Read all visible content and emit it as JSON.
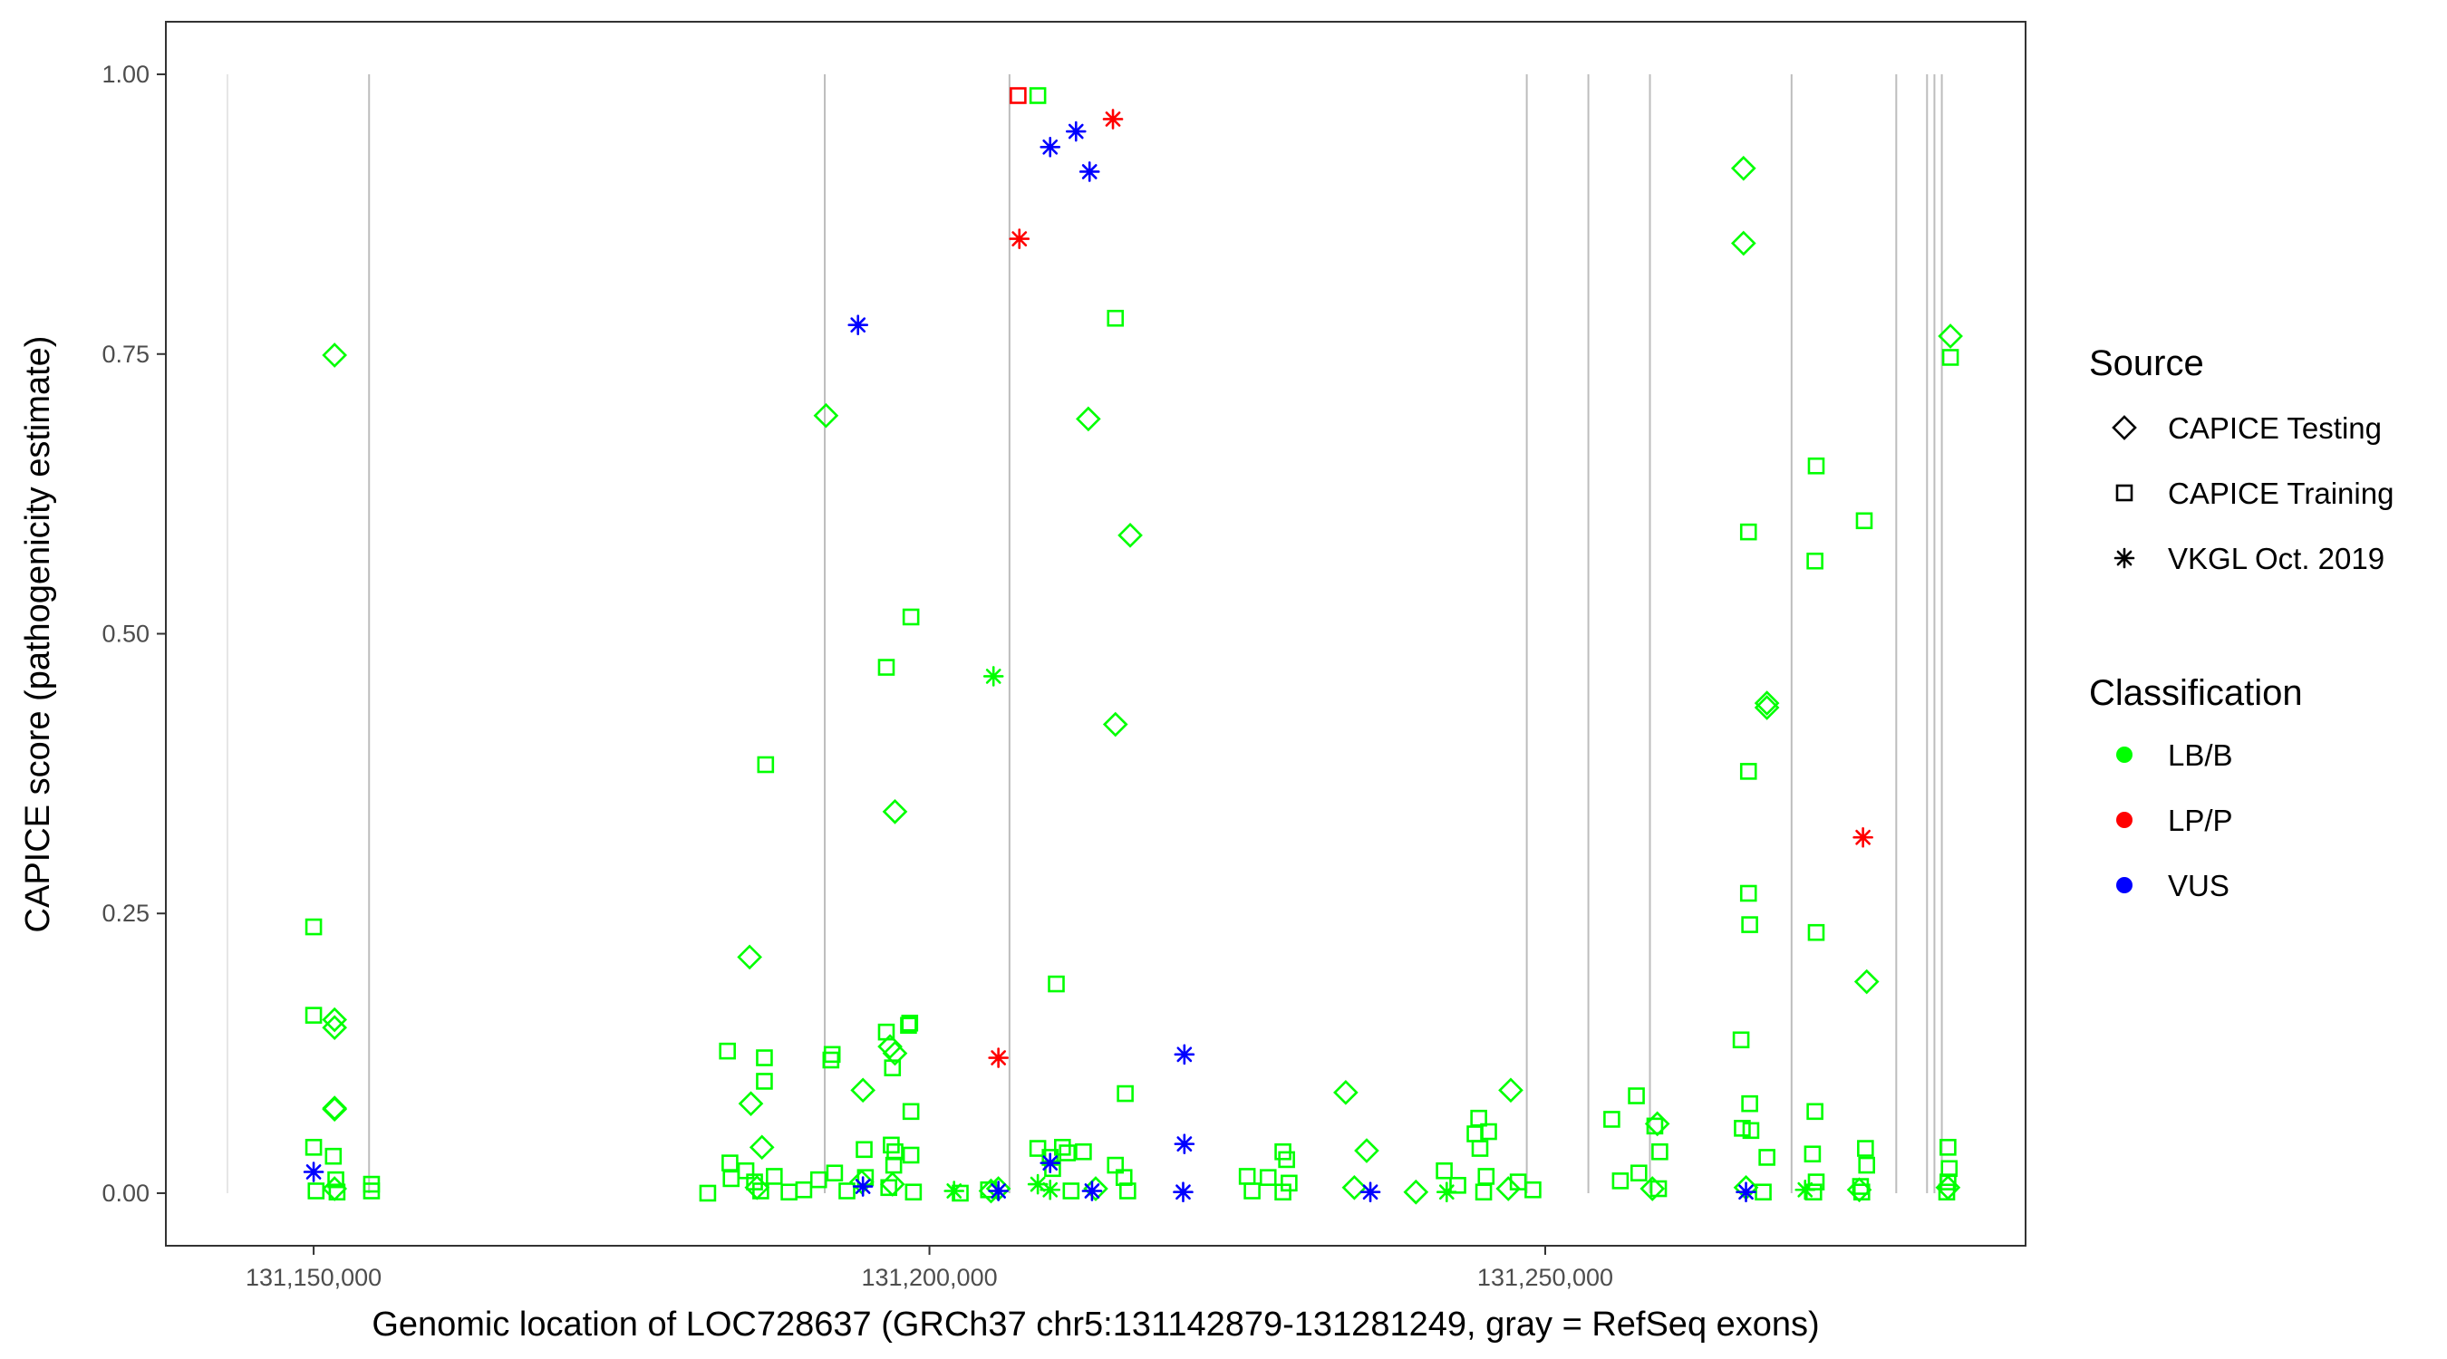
{
  "chart_data": {
    "type": "scatter",
    "title": "",
    "xlabel": "Genomic location of LOC728637 (GRCh37 chr5:131142879-131281249, gray = RefSeq exons)",
    "ylabel": "CAPICE score (pathogenicity estimate)",
    "xlim": [
      131138000,
      131289000
    ],
    "ylim": [
      -0.047,
      1.047
    ],
    "x_ticks": [
      131150000,
      131200000,
      131250000
    ],
    "x_tick_labels": [
      "131,150,000",
      "131,200,000",
      "131,250,000"
    ],
    "y_ticks": [
      0,
      0.25,
      0.5,
      0.75,
      1.0
    ],
    "y_tick_labels": [
      "0.00",
      "0.25",
      "0.50",
      "0.75",
      "1.00"
    ],
    "grid": false,
    "exon_lines": [
      {
        "x": 131143000,
        "color": "#e6e6e6"
      },
      {
        "x": 131154500,
        "color": "#bdbdbd"
      },
      {
        "x": 131191500,
        "color": "#bdbdbd"
      },
      {
        "x": 131206500,
        "color": "#bdbdbd"
      },
      {
        "x": 131248500,
        "color": "#bdbdbd"
      },
      {
        "x": 131253500,
        "color": "#bdbdbd"
      },
      {
        "x": 131258500,
        "color": "#bdbdbd"
      },
      {
        "x": 131270000,
        "color": "#bdbdbd"
      },
      {
        "x": 131278500,
        "color": "#bdbdbd"
      },
      {
        "x": 131281000,
        "color": "#bdbdbd"
      },
      {
        "x": 131281600,
        "color": "#bdbdbd"
      },
      {
        "x": 131282200,
        "color": "#bdbdbd"
      }
    ],
    "legend": {
      "placement": "right",
      "source_title": "Source",
      "source_items": [
        {
          "label": "CAPICE Testing",
          "shape": "diamond"
        },
        {
          "label": "CAPICE Training",
          "shape": "square"
        },
        {
          "label": "VKGL Oct. 2019",
          "shape": "asterisk"
        }
      ],
      "class_title": "Classification",
      "class_items": [
        {
          "label": "LB/B",
          "color": "#00ff00"
        },
        {
          "label": "LP/P",
          "color": "#ff0000"
        },
        {
          "label": "VUS",
          "color": "#0000ff"
        }
      ]
    },
    "series": [
      {
        "name": "CAPICE Testing",
        "shape": "diamond",
        "classification": "LB/B",
        "color": "#00ff00",
        "points": [
          [
            131151700,
            0.749
          ],
          [
            131151700,
            0.155
          ],
          [
            131151700,
            0.148
          ],
          [
            131151700,
            0.076
          ],
          [
            131151700,
            0.075
          ],
          [
            131151700,
            0.004
          ],
          [
            131185400,
            0.211
          ],
          [
            131185500,
            0.08
          ],
          [
            131186400,
            0.041
          ],
          [
            131186000,
            0.005
          ],
          [
            131191600,
            0.695
          ],
          [
            131194600,
            0.092
          ],
          [
            131194500,
            0.01
          ],
          [
            131197200,
            0.341
          ],
          [
            131196800,
            0.131
          ],
          [
            131197200,
            0.125
          ],
          [
            131197000,
            0.008
          ],
          [
            131205000,
            0.002
          ],
          [
            131205600,
            0.004
          ],
          [
            131212900,
            0.692
          ],
          [
            131215100,
            0.419
          ],
          [
            131216300,
            0.588
          ],
          [
            131213500,
            0.004
          ],
          [
            131233800,
            0.09
          ],
          [
            131235500,
            0.038
          ],
          [
            131234500,
            0.005
          ],
          [
            131239500,
            0.001
          ],
          [
            131247200,
            0.092
          ],
          [
            131247000,
            0.004
          ],
          [
            131259100,
            0.062
          ],
          [
            131258700,
            0.004
          ],
          [
            131266100,
            0.916
          ],
          [
            131266100,
            0.849
          ],
          [
            131268000,
            0.438
          ],
          [
            131268000,
            0.434
          ],
          [
            131266300,
            0.005
          ],
          [
            131276100,
            0.189
          ],
          [
            131275500,
            0.003
          ],
          [
            131282900,
            0.766
          ],
          [
            131282700,
            0.005
          ]
        ]
      },
      {
        "name": "CAPICE Training",
        "shape": "square",
        "classification": "LB/B",
        "color": "#00ff00",
        "points": [
          [
            131150000,
            0.238
          ],
          [
            131150000,
            0.159
          ],
          [
            131150000,
            0.041
          ],
          [
            131151600,
            0.033
          ],
          [
            131151800,
            0.012
          ],
          [
            131150200,
            0.002
          ],
          [
            131151900,
            0.001
          ],
          [
            131154700,
            0.008
          ],
          [
            131154700,
            0.002
          ],
          [
            131182000,
            0.0
          ],
          [
            131183600,
            0.127
          ],
          [
            131183800,
            0.027
          ],
          [
            131183900,
            0.013
          ],
          [
            131185100,
            0.02
          ],
          [
            131185800,
            0.01
          ],
          [
            131186300,
            0.002
          ],
          [
            131186700,
            0.383
          ],
          [
            131186600,
            0.121
          ],
          [
            131186600,
            0.1
          ],
          [
            131187400,
            0.015
          ],
          [
            131188600,
            0.001
          ],
          [
            131189800,
            0.003
          ],
          [
            131191000,
            0.012
          ],
          [
            131192100,
            0.124
          ],
          [
            131192000,
            0.119
          ],
          [
            131192300,
            0.018
          ],
          [
            131193300,
            0.002
          ],
          [
            131194700,
            0.039
          ],
          [
            131194800,
            0.014
          ],
          [
            131196500,
            0.47
          ],
          [
            131196500,
            0.144
          ],
          [
            131197000,
            0.112
          ],
          [
            131196900,
            0.043
          ],
          [
            131197200,
            0.037
          ],
          [
            131197100,
            0.025
          ],
          [
            131198500,
            0.515
          ],
          [
            131198400,
            0.152
          ],
          [
            131198300,
            0.15
          ],
          [
            131198500,
            0.073
          ],
          [
            131198500,
            0.034
          ],
          [
            131196700,
            0.005
          ],
          [
            131198700,
            0.001
          ],
          [
            131202500,
            0.0
          ],
          [
            131208800,
            0.981
          ],
          [
            131210800,
            0.041
          ],
          [
            131204800,
            0.003
          ],
          [
            131208800,
            0.04
          ],
          [
            131209800,
            0.032
          ],
          [
            131210300,
            0.187
          ],
          [
            131210000,
            0.022
          ],
          [
            131211200,
            0.036
          ],
          [
            131212500,
            0.037
          ],
          [
            131211500,
            0.002
          ],
          [
            131215100,
            0.782
          ],
          [
            131215100,
            0.025
          ],
          [
            131215900,
            0.089
          ],
          [
            131215800,
            0.014
          ],
          [
            131216100,
            0.002
          ],
          [
            131225800,
            0.015
          ],
          [
            131226200,
            0.002
          ],
          [
            131227500,
            0.014
          ],
          [
            131228700,
            0.037
          ],
          [
            131229000,
            0.03
          ],
          [
            131229200,
            0.009
          ],
          [
            131228700,
            0.001
          ],
          [
            131241800,
            0.02
          ],
          [
            131242900,
            0.007
          ],
          [
            131244300,
            0.053
          ],
          [
            131244600,
            0.067
          ],
          [
            131244700,
            0.04
          ],
          [
            131245200,
            0.015
          ],
          [
            131245400,
            0.055
          ],
          [
            131245000,
            0.001
          ],
          [
            131247800,
            0.01
          ],
          [
            131249000,
            0.003
          ],
          [
            131255400,
            0.066
          ],
          [
            131256100,
            0.011
          ],
          [
            131257400,
            0.087
          ],
          [
            131257600,
            0.018
          ],
          [
            131258900,
            0.06
          ],
          [
            131259300,
            0.037
          ],
          [
            131259200,
            0.004
          ],
          [
            131265900,
            0.137
          ],
          [
            131266000,
            0.058
          ],
          [
            131266500,
            0.591
          ],
          [
            131266500,
            0.377
          ],
          [
            131266500,
            0.268
          ],
          [
            131266600,
            0.24
          ],
          [
            131266600,
            0.08
          ],
          [
            131266700,
            0.056
          ],
          [
            131268000,
            0.032
          ],
          [
            131267700,
            0.001
          ],
          [
            131272000,
            0.65
          ],
          [
            131271900,
            0.565
          ],
          [
            131272000,
            0.233
          ],
          [
            131271900,
            0.073
          ],
          [
            131271700,
            0.035
          ],
          [
            131272000,
            0.01
          ],
          [
            131271800,
            0.001
          ],
          [
            131275900,
            0.601
          ],
          [
            131276000,
            0.04
          ],
          [
            131276100,
            0.025
          ],
          [
            131275600,
            0.006
          ],
          [
            131275700,
            0.001
          ],
          [
            131282900,
            0.747
          ],
          [
            131282700,
            0.041
          ],
          [
            131282800,
            0.022
          ],
          [
            131282700,
            0.01
          ],
          [
            131282600,
            0.001
          ]
        ]
      },
      {
        "name": "CAPICE Training",
        "shape": "square",
        "classification": "LP/P",
        "color": "#ff0000",
        "points": [
          [
            131207200,
            0.981
          ]
        ]
      },
      {
        "name": "VKGL Oct. 2019",
        "shape": "asterisk",
        "classification": "LB/B",
        "color": "#00ff00",
        "points": [
          [
            131205200,
            0.462
          ],
          [
            131208800,
            0.008
          ],
          [
            131202000,
            0.002
          ],
          [
            131209800,
            0.003
          ],
          [
            131242000,
            0.001
          ],
          [
            131271100,
            0.003
          ]
        ]
      },
      {
        "name": "VKGL Oct. 2019",
        "shape": "asterisk",
        "classification": "LP/P",
        "color": "#ff0000",
        "points": [
          [
            131207300,
            0.853
          ],
          [
            131214900,
            0.96
          ],
          [
            131205600,
            0.121
          ],
          [
            131275800,
            0.318
          ]
        ]
      },
      {
        "name": "VKGL Oct. 2019",
        "shape": "asterisk",
        "classification": "VUS",
        "color": "#0000ff",
        "points": [
          [
            131150000,
            0.019
          ],
          [
            131194200,
            0.776
          ],
          [
            131209800,
            0.935
          ],
          [
            131211900,
            0.949
          ],
          [
            131213000,
            0.913
          ],
          [
            131205600,
            0.002
          ],
          [
            131194600,
            0.006
          ],
          [
            131209800,
            0.027
          ],
          [
            131213200,
            0.002
          ],
          [
            131220700,
            0.124
          ],
          [
            131220700,
            0.044
          ],
          [
            131220600,
            0.001
          ],
          [
            131235800,
            0.001
          ],
          [
            131266300,
            0.001
          ]
        ]
      }
    ]
  }
}
